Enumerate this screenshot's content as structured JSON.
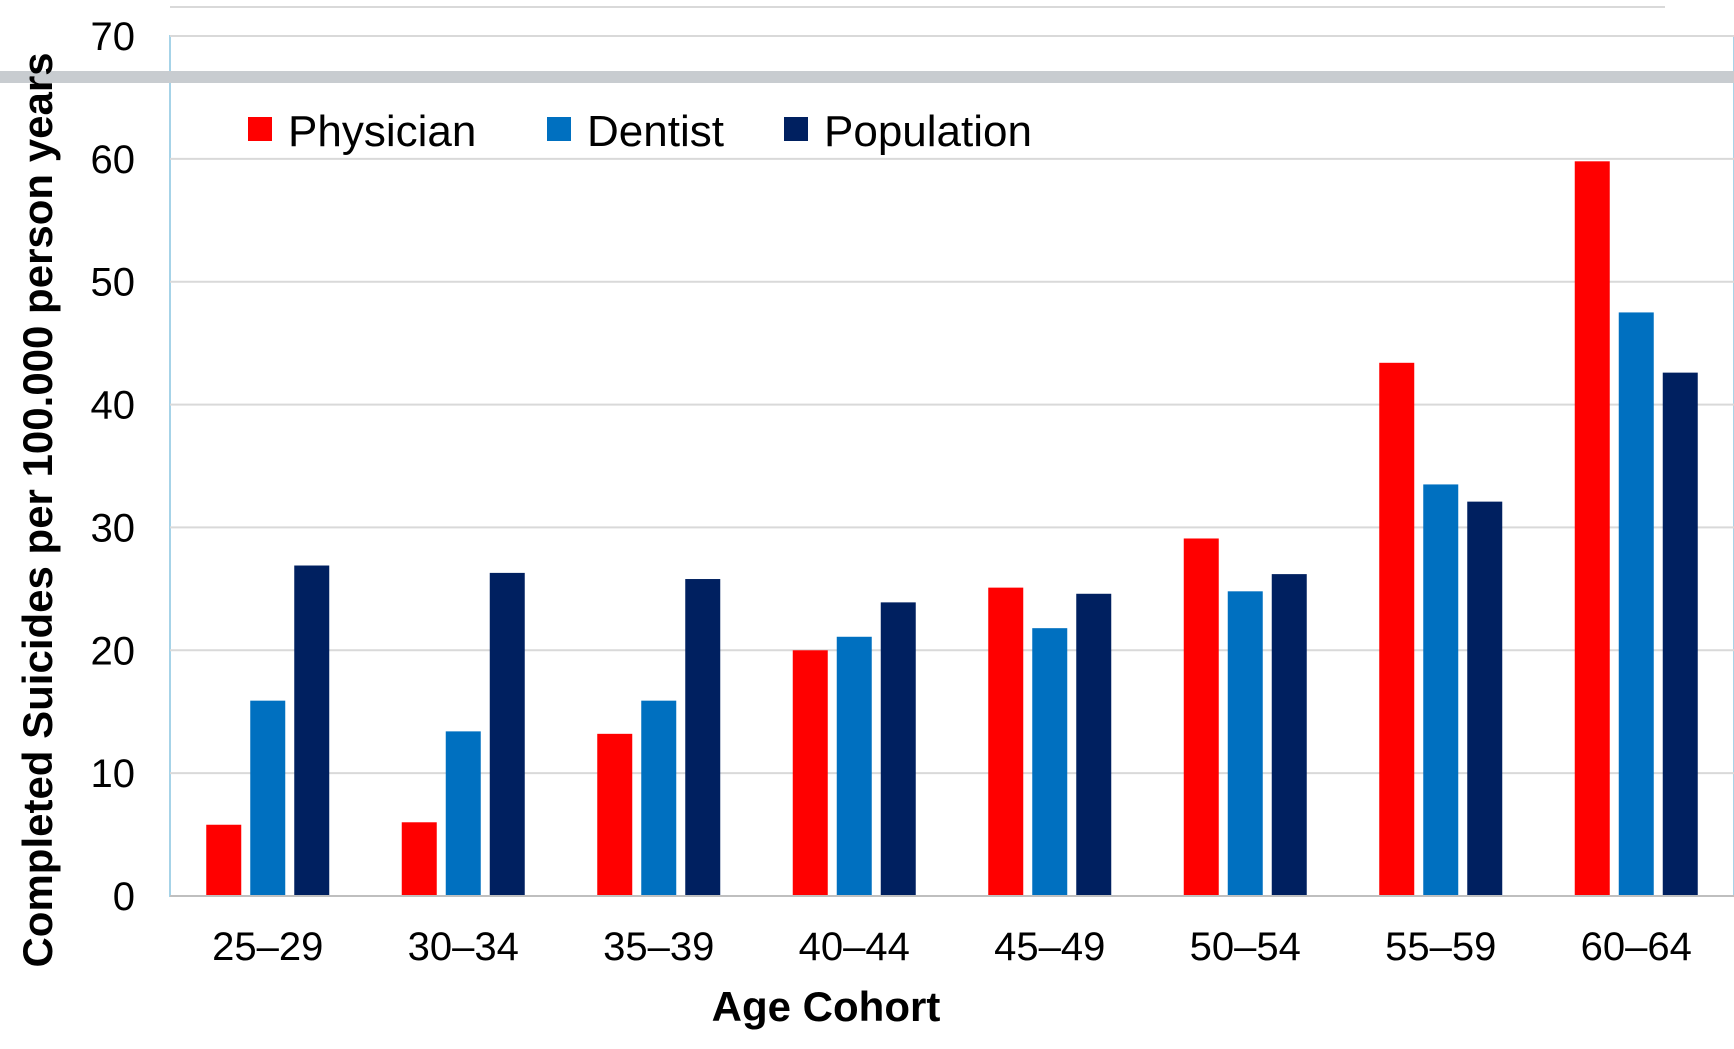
{
  "chart_data": {
    "type": "bar",
    "xlabel": "Age Cohort",
    "ylabel": "Completed Suicides per 100.000 person years",
    "ylim": [
      0,
      70
    ],
    "yticks": [
      0,
      10,
      20,
      30,
      40,
      50,
      60,
      70
    ],
    "grid": true,
    "legend_position": "top-left",
    "categories": [
      "25–29",
      "30–34",
      "35–39",
      "40–44",
      "45–49",
      "50–54",
      "55–59",
      "60–64"
    ],
    "series": [
      {
        "name": "Physician",
        "color": "#ff0000",
        "values": [
          5.8,
          6.0,
          13.2,
          20.0,
          25.1,
          29.1,
          43.4,
          59.8
        ]
      },
      {
        "name": "Dentist",
        "color": "#0070c0",
        "values": [
          15.9,
          13.4,
          15.9,
          21.1,
          21.8,
          24.8,
          33.5,
          47.5
        ]
      },
      {
        "name": "Population",
        "color": "#002060",
        "values": [
          26.9,
          26.3,
          25.8,
          23.9,
          24.6,
          26.2,
          32.1,
          42.6
        ]
      }
    ]
  },
  "colors": {
    "gridline": "#d9d9d9",
    "plot_border": "#a6d3e8",
    "banner": "#c8ccd0"
  }
}
